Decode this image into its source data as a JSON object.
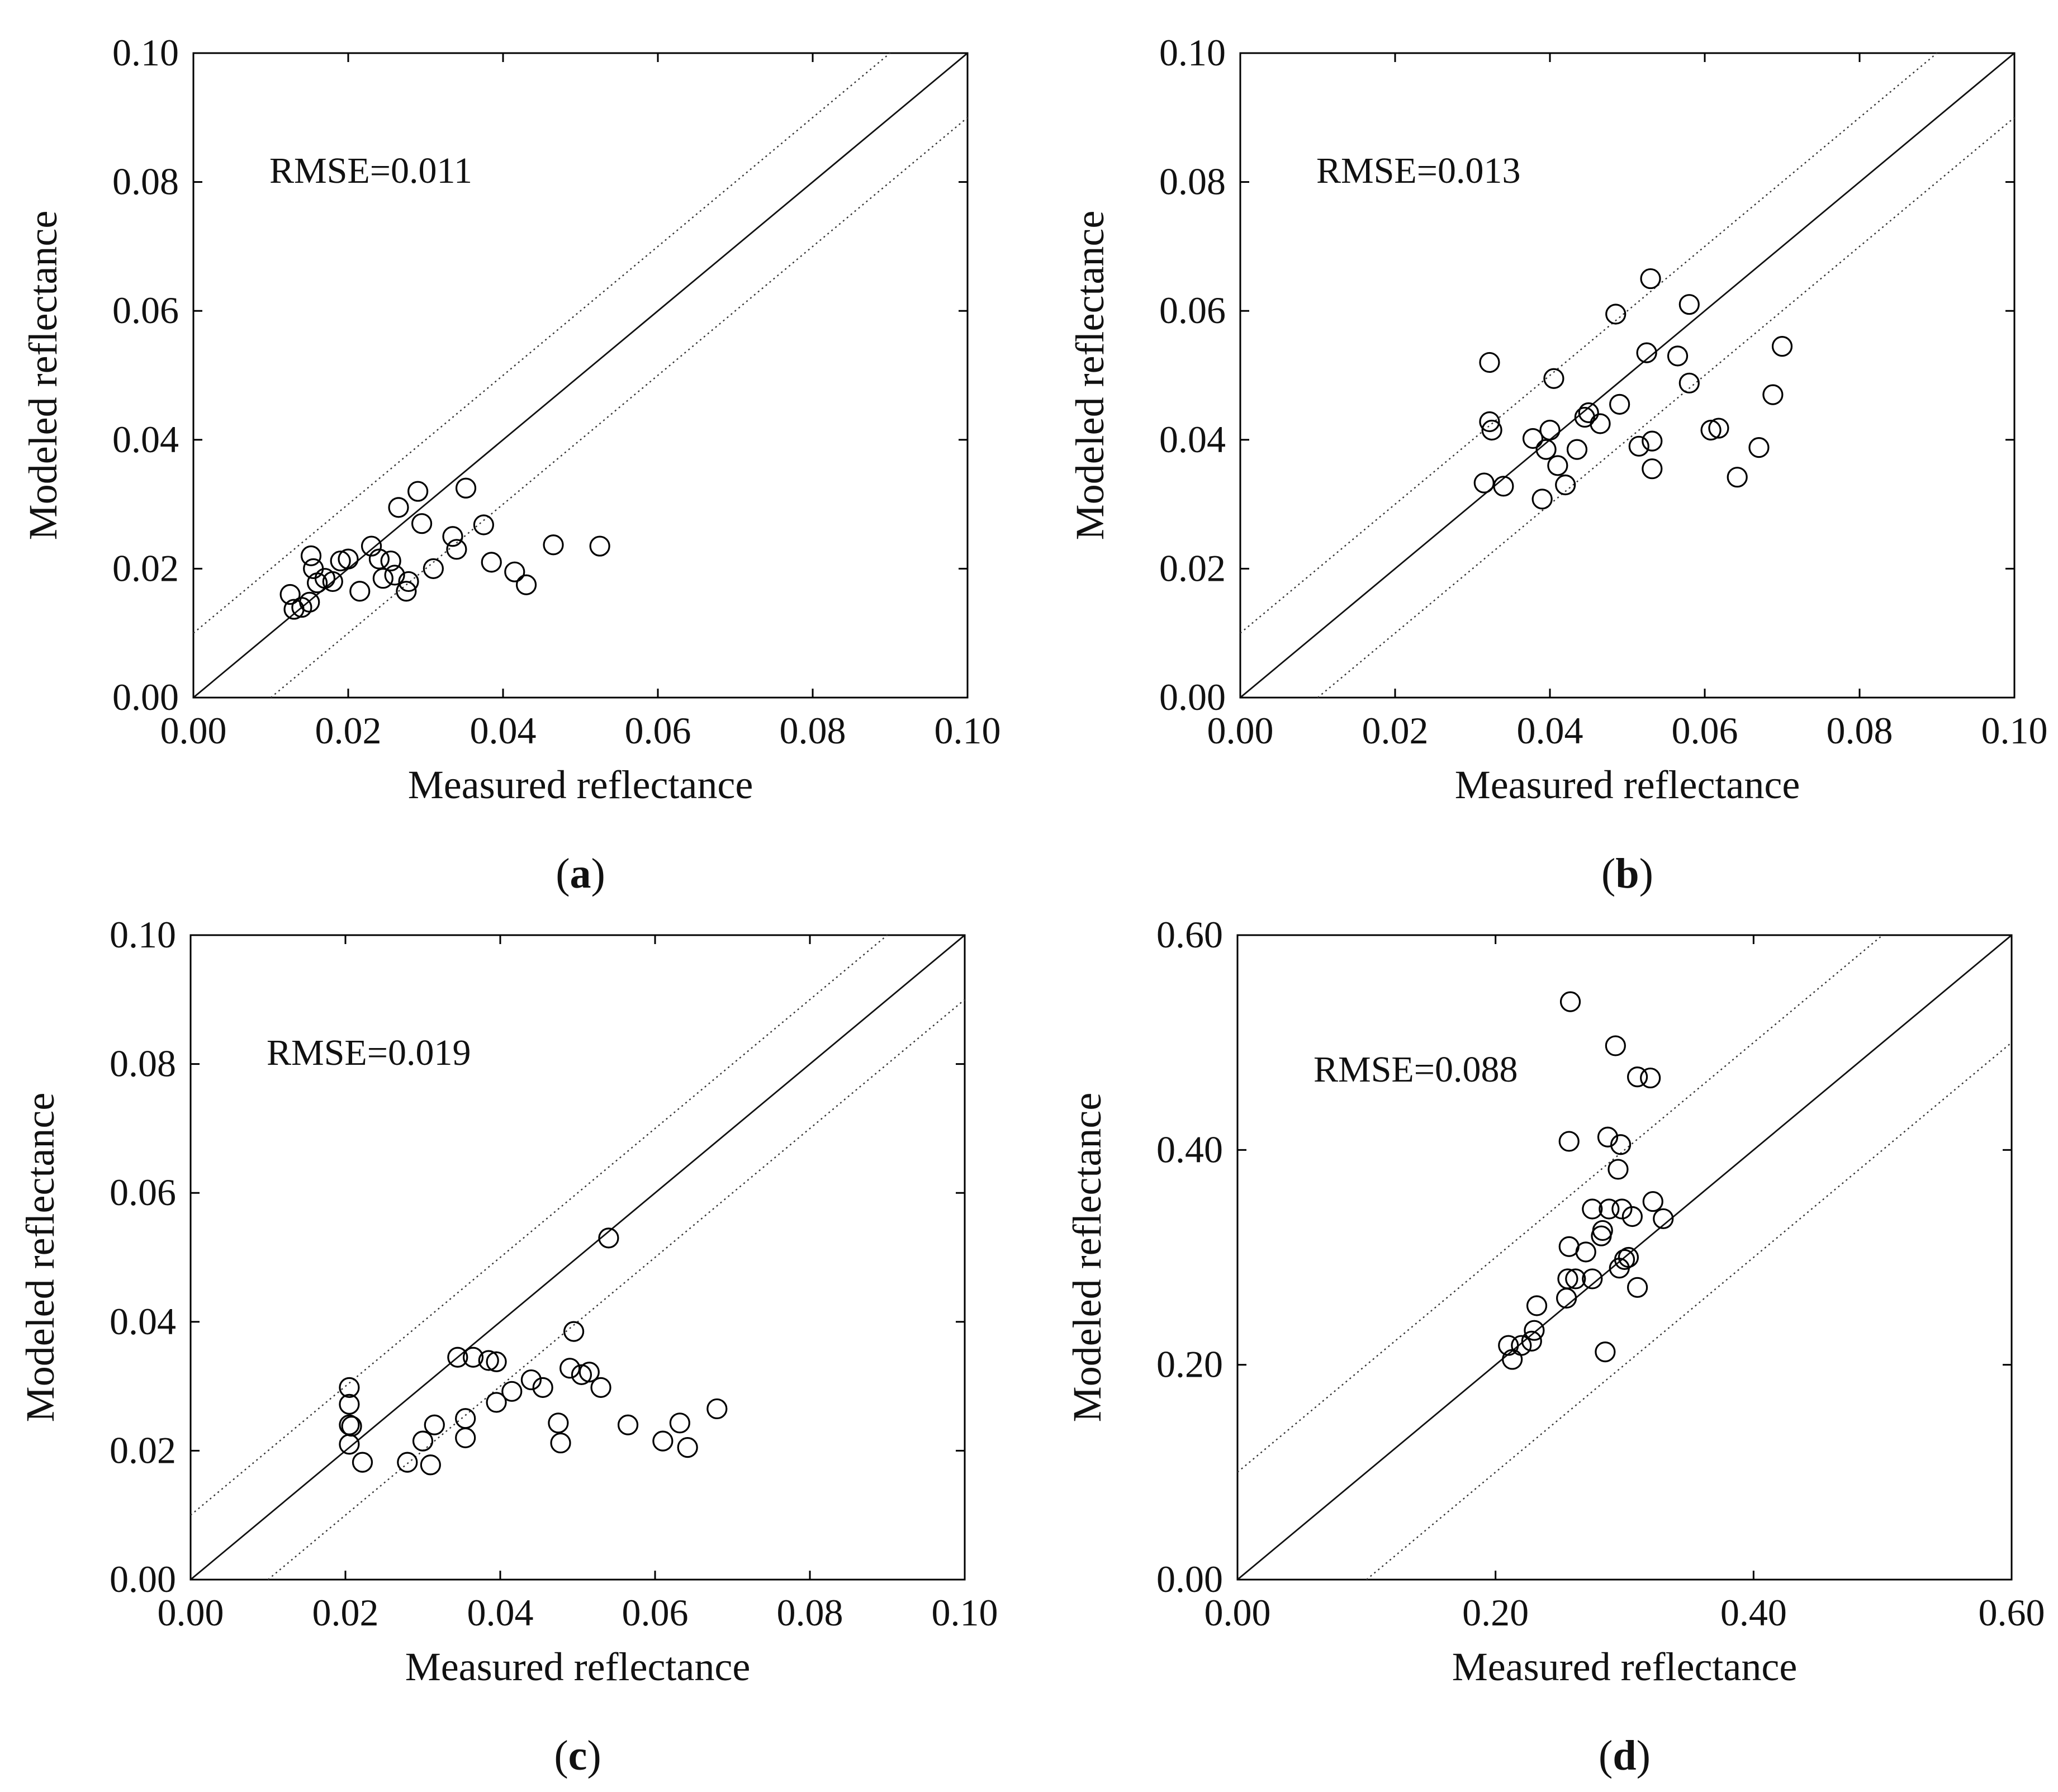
{
  "figure": {
    "panels": [
      "a",
      "b",
      "c",
      "d"
    ]
  },
  "chart_data": [
    {
      "type": "scatter",
      "caption_letter": "a",
      "xlabel": "Measured reflectance",
      "ylabel": "Modeled reflectance",
      "annotation": "RMSE=0.011",
      "xlim": [
        0,
        0.1
      ],
      "ylim": [
        0,
        0.1
      ],
      "xticks": [
        0,
        0.02,
        0.04,
        0.06,
        0.08,
        0.1
      ],
      "yticks": [
        0,
        0.02,
        0.04,
        0.06,
        0.08,
        0.1
      ],
      "xtick_labels": [
        "0.00",
        "0.02",
        "0.04",
        "0.06",
        "0.08",
        "0.10"
      ],
      "ytick_labels": [
        "0.00",
        "0.02",
        "0.04",
        "0.06",
        "0.08",
        "0.10"
      ],
      "reference_lines": {
        "one_to_one": true,
        "offset": 0.01
      },
      "points": [
        [
          0.0125,
          0.016
        ],
        [
          0.013,
          0.0137
        ],
        [
          0.014,
          0.014
        ],
        [
          0.015,
          0.0148
        ],
        [
          0.0152,
          0.022
        ],
        [
          0.0155,
          0.02
        ],
        [
          0.016,
          0.0178
        ],
        [
          0.017,
          0.0185
        ],
        [
          0.018,
          0.018
        ],
        [
          0.019,
          0.0212
        ],
        [
          0.02,
          0.0215
        ],
        [
          0.0215,
          0.0165
        ],
        [
          0.023,
          0.0235
        ],
        [
          0.024,
          0.0215
        ],
        [
          0.0245,
          0.0185
        ],
        [
          0.0255,
          0.0212
        ],
        [
          0.026,
          0.019
        ],
        [
          0.0265,
          0.0295
        ],
        [
          0.0275,
          0.0165
        ],
        [
          0.0278,
          0.018
        ],
        [
          0.029,
          0.032
        ],
        [
          0.0295,
          0.027
        ],
        [
          0.031,
          0.02
        ],
        [
          0.0335,
          0.025
        ],
        [
          0.034,
          0.023
        ],
        [
          0.0352,
          0.0325
        ],
        [
          0.0375,
          0.0268
        ],
        [
          0.0385,
          0.021
        ],
        [
          0.0415,
          0.0195
        ],
        [
          0.043,
          0.0175
        ],
        [
          0.0465,
          0.0237
        ],
        [
          0.0525,
          0.0235
        ]
      ]
    },
    {
      "type": "scatter",
      "caption_letter": "b",
      "xlabel": "Measured reflectance",
      "ylabel": "Modeled reflectance",
      "annotation": "RMSE=0.013",
      "xlim": [
        0,
        0.1
      ],
      "ylim": [
        0,
        0.1
      ],
      "xticks": [
        0,
        0.02,
        0.04,
        0.06,
        0.08,
        0.1
      ],
      "yticks": [
        0,
        0.02,
        0.04,
        0.06,
        0.08,
        0.1
      ],
      "xtick_labels": [
        "0.00",
        "0.02",
        "0.04",
        "0.06",
        "0.08",
        "0.10"
      ],
      "ytick_labels": [
        "0.00",
        "0.02",
        "0.04",
        "0.06",
        "0.08",
        "0.10"
      ],
      "reference_lines": {
        "one_to_one": true,
        "offset": 0.01
      },
      "points": [
        [
          0.0315,
          0.0333
        ],
        [
          0.0322,
          0.052
        ],
        [
          0.0322,
          0.0428
        ],
        [
          0.0325,
          0.0415
        ],
        [
          0.034,
          0.0328
        ],
        [
          0.0378,
          0.0402
        ],
        [
          0.039,
          0.0308
        ],
        [
          0.0395,
          0.0385
        ],
        [
          0.04,
          0.0415
        ],
        [
          0.0405,
          0.0495
        ],
        [
          0.041,
          0.036
        ],
        [
          0.042,
          0.033
        ],
        [
          0.0435,
          0.0385
        ],
        [
          0.0445,
          0.0435
        ],
        [
          0.045,
          0.0442
        ],
        [
          0.0465,
          0.0425
        ],
        [
          0.0485,
          0.0595
        ],
        [
          0.049,
          0.0455
        ],
        [
          0.0515,
          0.039
        ],
        [
          0.0525,
          0.0535
        ],
        [
          0.053,
          0.065
        ],
        [
          0.0532,
          0.0398
        ],
        [
          0.0532,
          0.0355
        ],
        [
          0.0565,
          0.053
        ],
        [
          0.058,
          0.061
        ],
        [
          0.058,
          0.0488
        ],
        [
          0.0608,
          0.0415
        ],
        [
          0.0618,
          0.0418
        ],
        [
          0.0642,
          0.0342
        ],
        [
          0.067,
          0.0388
        ],
        [
          0.0688,
          0.047
        ],
        [
          0.07,
          0.0545
        ]
      ]
    },
    {
      "type": "scatter",
      "caption_letter": "c",
      "xlabel": "Measured reflectance",
      "ylabel": "Modeled reflectance",
      "annotation": "RMSE=0.019",
      "xlim": [
        0,
        0.1
      ],
      "ylim": [
        0,
        0.1
      ],
      "xticks": [
        0,
        0.02,
        0.04,
        0.06,
        0.08,
        0.1
      ],
      "yticks": [
        0,
        0.02,
        0.04,
        0.06,
        0.08,
        0.1
      ],
      "xtick_labels": [
        "0.00",
        "0.02",
        "0.04",
        "0.06",
        "0.08",
        "0.10"
      ],
      "ytick_labels": [
        "0.00",
        "0.02",
        "0.04",
        "0.06",
        "0.08",
        "0.10"
      ],
      "reference_lines": {
        "one_to_one": true,
        "offset": 0.01
      },
      "points": [
        [
          0.0205,
          0.0298
        ],
        [
          0.0205,
          0.0272
        ],
        [
          0.0205,
          0.024
        ],
        [
          0.0208,
          0.0238
        ],
        [
          0.0205,
          0.021
        ],
        [
          0.0222,
          0.0182
        ],
        [
          0.028,
          0.0182
        ],
        [
          0.03,
          0.0215
        ],
        [
          0.031,
          0.0178
        ],
        [
          0.0315,
          0.024
        ],
        [
          0.0345,
          0.0345
        ],
        [
          0.0355,
          0.025
        ],
        [
          0.0355,
          0.022
        ],
        [
          0.0365,
          0.0345
        ],
        [
          0.0385,
          0.034
        ],
        [
          0.0395,
          0.0338
        ],
        [
          0.0395,
          0.0275
        ],
        [
          0.0415,
          0.0292
        ],
        [
          0.044,
          0.031
        ],
        [
          0.0455,
          0.0298
        ],
        [
          0.0475,
          0.0243
        ],
        [
          0.0478,
          0.0212
        ],
        [
          0.049,
          0.0328
        ],
        [
          0.0495,
          0.0385
        ],
        [
          0.0505,
          0.0318
        ],
        [
          0.0515,
          0.0322
        ],
        [
          0.053,
          0.0298
        ],
        [
          0.054,
          0.053
        ],
        [
          0.0565,
          0.024
        ],
        [
          0.061,
          0.0215
        ],
        [
          0.0632,
          0.0243
        ],
        [
          0.0642,
          0.0205
        ],
        [
          0.068,
          0.0265
        ]
      ]
    },
    {
      "type": "scatter",
      "caption_letter": "d",
      "xlabel": "Measured reflectance",
      "ylabel": "Modeled reflectance",
      "annotation": "RMSE=0.088",
      "xlim": [
        0,
        0.6
      ],
      "ylim": [
        0,
        0.6
      ],
      "xticks": [
        0,
        0.2,
        0.4,
        0.6
      ],
      "yticks": [
        0,
        0.2,
        0.4,
        0.6
      ],
      "xtick_labels": [
        "0.00",
        "0.20",
        "0.40",
        "0.60"
      ],
      "ytick_labels": [
        "0.00",
        "0.20",
        "0.40",
        "0.60"
      ],
      "reference_lines": {
        "one_to_one": true,
        "offset": 0.1
      },
      "points": [
        [
          0.21,
          0.218
        ],
        [
          0.213,
          0.205
        ],
        [
          0.22,
          0.218
        ],
        [
          0.228,
          0.222
        ],
        [
          0.23,
          0.232
        ],
        [
          0.232,
          0.255
        ],
        [
          0.255,
          0.262
        ],
        [
          0.256,
          0.28
        ],
        [
          0.257,
          0.31
        ],
        [
          0.257,
          0.408
        ],
        [
          0.258,
          0.538
        ],
        [
          0.262,
          0.28
        ],
        [
          0.27,
          0.305
        ],
        [
          0.275,
          0.345
        ],
        [
          0.275,
          0.28
        ],
        [
          0.282,
          0.32
        ],
        [
          0.283,
          0.325
        ],
        [
          0.285,
          0.212
        ],
        [
          0.287,
          0.412
        ],
        [
          0.288,
          0.345
        ],
        [
          0.293,
          0.497
        ],
        [
          0.295,
          0.382
        ],
        [
          0.296,
          0.29
        ],
        [
          0.297,
          0.405
        ],
        [
          0.298,
          0.345
        ],
        [
          0.3,
          0.298
        ],
        [
          0.303,
          0.3
        ],
        [
          0.306,
          0.338
        ],
        [
          0.31,
          0.272
        ],
        [
          0.31,
          0.468
        ],
        [
          0.32,
          0.467
        ],
        [
          0.322,
          0.352
        ],
        [
          0.33,
          0.336
        ]
      ]
    }
  ]
}
